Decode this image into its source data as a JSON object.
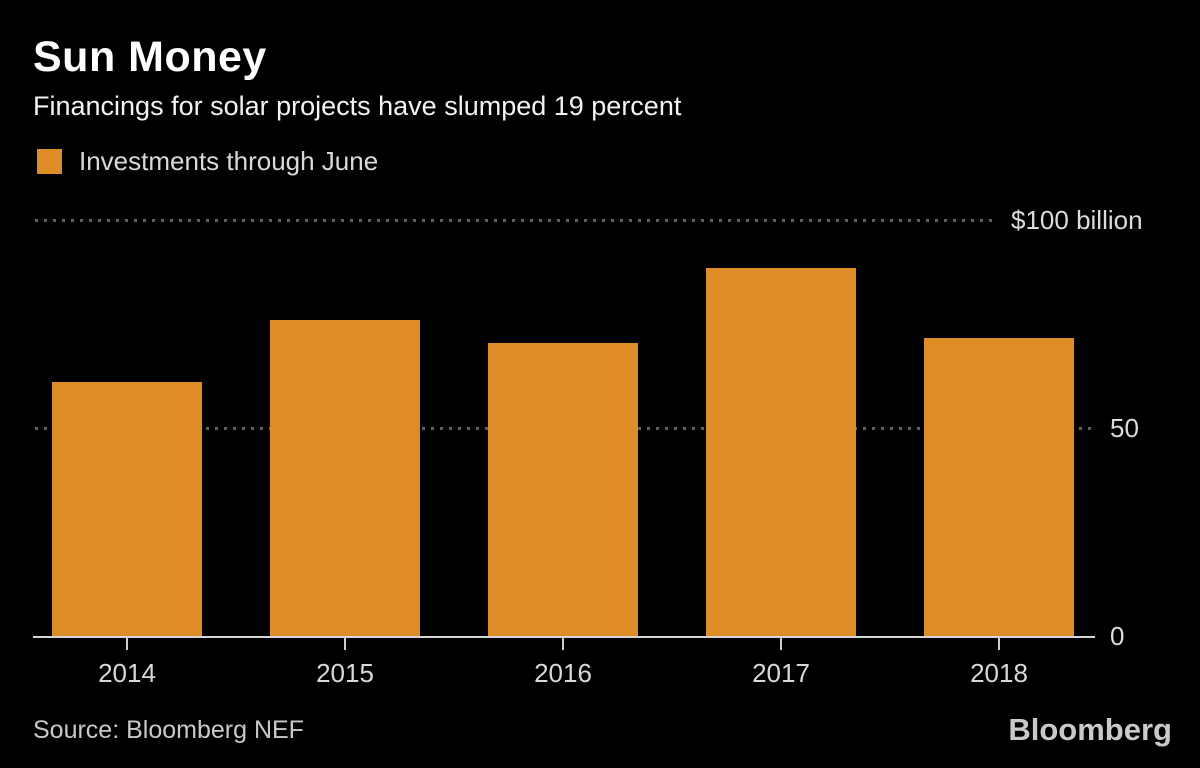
{
  "header": {
    "title": "Sun Money",
    "subtitle": "Financings for solar projects have slumped 19 percent"
  },
  "legend": {
    "label": "Investments through June",
    "swatch_color": "#dd8c26"
  },
  "chart_data": {
    "type": "bar",
    "title": "Sun Money",
    "subtitle": "Financings for solar projects have slumped 19 percent",
    "categories": [
      "2014",
      "2015",
      "2016",
      "2017",
      "2018"
    ],
    "series": [
      {
        "name": "Investments through June",
        "values": [
          61,
          76,
          70.5,
          88.5,
          71.6
        ]
      }
    ],
    "unit": "billion USD",
    "ylim": [
      0,
      100
    ],
    "gridlines": [
      {
        "value": 100,
        "label": "$100 billion"
      },
      {
        "value": 50,
        "label": "50"
      },
      {
        "value": 0,
        "label": "0"
      }
    ],
    "grid_style": "dotted",
    "legend_position": "top-left",
    "bar_color": "#dd8c26",
    "background_color": "#000000"
  },
  "footer": {
    "source": "Source: Bloomberg NEF",
    "brand": "Bloomberg"
  }
}
